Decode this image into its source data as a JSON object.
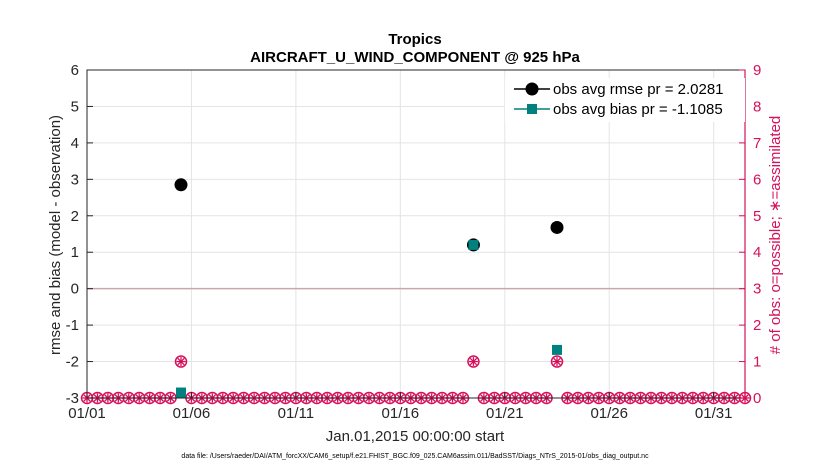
{
  "chart_data": {
    "type": "scatter",
    "title": "Tropics",
    "subtitle": "AIRCRAFT_U_WIND_COMPONENT @ 925 hPa",
    "xlabel": "Jan.01,2015 00:00:00 start",
    "ylabel": "rmse and bias (model - observation)",
    "y2label": "# of obs: o=possible; ∗=assimilated",
    "footer": "data file: /Users/raeder/DAI/ATM_forcXX/CAM6_setup/f.e21.FHIST_BGC.f09_025.CAM6assim.011/BadSST/Diags_NTrS_2015-01/obs_diag_output.nc",
    "xlim": [
      1,
      32.5
    ],
    "ylim": [
      -3,
      6
    ],
    "y2lim": [
      0,
      9
    ],
    "x_ticks": [
      1,
      6,
      11,
      16,
      21,
      26,
      31
    ],
    "x_tick_labels": [
      "01/01",
      "01/06",
      "01/11",
      "01/16",
      "01/21",
      "01/26",
      "01/31"
    ],
    "y_ticks": [
      -3,
      -2,
      -1,
      0,
      1,
      2,
      3,
      4,
      5,
      6
    ],
    "y_tick_labels": [
      "-3",
      "-2",
      "-1",
      "0",
      "1",
      "2",
      "3",
      "4",
      "5",
      "6"
    ],
    "y2_ticks": [
      0,
      1,
      2,
      3,
      4,
      5,
      6,
      7,
      8,
      9
    ],
    "y2_tick_labels": [
      "0",
      "1",
      "2",
      "3",
      "4",
      "5",
      "6",
      "7",
      "8",
      "9"
    ],
    "grid": true,
    "legend_position": "top-right",
    "series": [
      {
        "name": "obs avg rmse pr = 2.0281",
        "marker": "circle",
        "color": "#000000",
        "x": [
          5.5,
          19.5,
          23.5
        ],
        "y": [
          2.85,
          1.2,
          1.68
        ]
      },
      {
        "name": "obs avg bias pr = -1.1085",
        "marker": "square",
        "color": "#00807f",
        "x": [
          5.5,
          19.5,
          23.5
        ],
        "y": [
          -2.85,
          1.2,
          -1.68
        ]
      }
    ],
    "obs_counts": {
      "color": "#d6105a",
      "days": [
        1.0,
        1.5,
        2.0,
        2.5,
        3.0,
        3.5,
        4.0,
        4.5,
        5.0,
        5.5,
        6.0,
        6.5,
        7.0,
        7.5,
        8.0,
        8.5,
        9.0,
        9.5,
        10.0,
        10.5,
        11.0,
        11.5,
        12.0,
        12.5,
        13.0,
        13.5,
        14.0,
        14.5,
        15.0,
        15.5,
        16.0,
        16.5,
        17.0,
        17.5,
        18.0,
        18.5,
        19.0,
        19.5,
        20.0,
        20.5,
        21.0,
        21.5,
        22.0,
        22.5,
        23.0,
        23.5,
        24.0,
        24.5,
        25.0,
        25.5,
        26.0,
        26.5,
        27.0,
        27.5,
        28.0,
        28.5,
        29.0,
        29.5,
        30.0,
        30.5,
        31.0,
        31.5,
        32.0,
        32.5
      ],
      "possible": [
        0,
        0,
        0,
        0,
        0,
        0,
        0,
        0,
        0,
        1,
        0,
        0,
        0,
        0,
        0,
        0,
        0,
        0,
        0,
        0,
        0,
        0,
        0,
        0,
        0,
        0,
        0,
        0,
        0,
        0,
        0,
        0,
        0,
        0,
        0,
        0,
        0,
        1,
        0,
        0,
        0,
        0,
        0,
        0,
        0,
        1,
        0,
        0,
        0,
        0,
        0,
        0,
        0,
        0,
        0,
        0,
        0,
        0,
        0,
        0,
        0,
        0,
        0,
        0
      ],
      "assimilated": [
        0,
        0,
        0,
        0,
        0,
        0,
        0,
        0,
        0,
        1,
        0,
        0,
        0,
        0,
        0,
        0,
        0,
        0,
        0,
        0,
        0,
        0,
        0,
        0,
        0,
        0,
        0,
        0,
        0,
        0,
        0,
        0,
        0,
        0,
        0,
        0,
        0,
        1,
        0,
        0,
        0,
        0,
        0,
        0,
        0,
        1,
        0,
        0,
        0,
        0,
        0,
        0,
        0,
        0,
        0,
        0,
        0,
        0,
        0,
        0,
        0,
        0,
        0,
        0
      ]
    }
  }
}
